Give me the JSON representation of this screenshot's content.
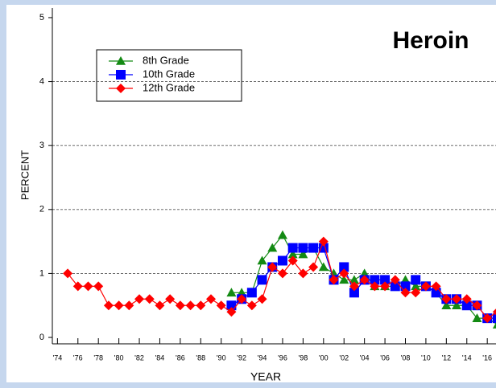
{
  "chart_data": {
    "type": "line",
    "title": "Heroin",
    "xlabel": "YEAR",
    "ylabel": "PERCENT",
    "x": [
      1975,
      1976,
      1977,
      1978,
      1979,
      1980,
      1981,
      1982,
      1983,
      1984,
      1985,
      1986,
      1987,
      1988,
      1989,
      1990,
      1991,
      1992,
      1993,
      1994,
      1995,
      1996,
      1997,
      1998,
      1999,
      2000,
      2001,
      2002,
      2003,
      2004,
      2005,
      2006,
      2007,
      2008,
      2009,
      2010,
      2011,
      2012,
      2013,
      2014,
      2015,
      2016,
      2017
    ],
    "series": [
      {
        "name": "8th Grade",
        "color": "#138a13",
        "marker": "triangle",
        "values": [
          null,
          null,
          null,
          null,
          null,
          null,
          null,
          null,
          null,
          null,
          null,
          null,
          null,
          null,
          null,
          null,
          0.7,
          0.7,
          0.7,
          1.2,
          1.4,
          1.6,
          1.3,
          1.3,
          1.4,
          1.1,
          1.0,
          0.9,
          0.9,
          1.0,
          0.8,
          0.8,
          0.8,
          0.9,
          0.8,
          0.8,
          0.7,
          0.5,
          0.5,
          0.5,
          0.3,
          0.3,
          0.2
        ]
      },
      {
        "name": "10th Grade",
        "color": "#0000ff",
        "marker": "square",
        "values": [
          null,
          null,
          null,
          null,
          null,
          null,
          null,
          null,
          null,
          null,
          null,
          null,
          null,
          null,
          null,
          null,
          0.5,
          0.6,
          0.7,
          0.9,
          1.1,
          1.2,
          1.4,
          1.4,
          1.4,
          1.4,
          0.9,
          1.1,
          0.7,
          0.9,
          0.9,
          0.9,
          0.8,
          0.8,
          0.9,
          0.8,
          0.7,
          0.6,
          0.6,
          0.5,
          0.5,
          0.3,
          0.3
        ]
      },
      {
        "name": "12th Grade",
        "color": "#ff0000",
        "marker": "diamond",
        "values": [
          1.0,
          0.8,
          0.8,
          0.8,
          0.5,
          0.5,
          0.5,
          0.6,
          0.6,
          0.5,
          0.6,
          0.5,
          0.5,
          0.5,
          0.6,
          0.5,
          0.4,
          0.6,
          0.5,
          0.6,
          1.1,
          1.0,
          1.2,
          1.0,
          1.1,
          1.5,
          0.9,
          1.0,
          0.8,
          0.9,
          0.8,
          0.8,
          0.9,
          0.7,
          0.7,
          0.8,
          0.8,
          0.6,
          0.6,
          0.6,
          0.5,
          0.3,
          0.4
        ]
      }
    ],
    "xlim": [
      1973.5,
      2019
    ],
    "ylim": [
      -0.1,
      5.15
    ],
    "xticks": [
      {
        "value": 1974,
        "label": "'74"
      },
      {
        "value": 1976,
        "label": "'76"
      },
      {
        "value": 1978,
        "label": "'78"
      },
      {
        "value": 1980,
        "label": "'80"
      },
      {
        "value": 1982,
        "label": "'82"
      },
      {
        "value": 1984,
        "label": "'84"
      },
      {
        "value": 1986,
        "label": "'86"
      },
      {
        "value": 1988,
        "label": "'88"
      },
      {
        "value": 1990,
        "label": "'90"
      },
      {
        "value": 1992,
        "label": "'92"
      },
      {
        "value": 1994,
        "label": "'94"
      },
      {
        "value": 1996,
        "label": "'96"
      },
      {
        "value": 1998,
        "label": "'98"
      },
      {
        "value": 2000,
        "label": "'00"
      },
      {
        "value": 2002,
        "label": "'02"
      },
      {
        "value": 2004,
        "label": "'04"
      },
      {
        "value": 2006,
        "label": "'06"
      },
      {
        "value": 2008,
        "label": "'08"
      },
      {
        "value": 2010,
        "label": "'10"
      },
      {
        "value": 2012,
        "label": "'12"
      },
      {
        "value": 2014,
        "label": "'14"
      },
      {
        "value": 2016,
        "label": "'16"
      }
    ],
    "yticks": [
      0,
      1,
      2,
      3,
      4,
      5
    ],
    "grid": true
  }
}
